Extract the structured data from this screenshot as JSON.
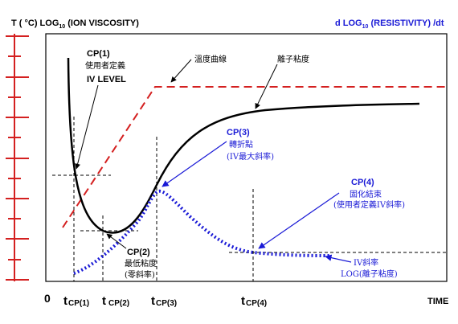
{
  "colors": {
    "temperature": "#d42020",
    "viscosity": "#000000",
    "resistivity": "#1a1ad6",
    "guides": "#000000"
  },
  "header": {
    "left_prefix": "T ( °C)  LOG",
    "left_sub": "10",
    "left_suffix": " (ION VISCOSITY)",
    "right_prefix": "d LOG",
    "right_sub": "10",
    "right_suffix": " (RESISTIVITY) /dt"
  },
  "axis": {
    "origin": "0",
    "time": "TIME",
    "t_labels": [
      {
        "t": "t",
        "sub": "CP(1)"
      },
      {
        "t": "t",
        "sub": "CP(2)"
      },
      {
        "t": "t",
        "sub": "CP(3)"
      },
      {
        "t": "t",
        "sub": "CP(4)"
      }
    ]
  },
  "curve_labels": {
    "temperature": "溫度曲線",
    "viscosity": "離子粘度"
  },
  "points": {
    "cp1": {
      "title": "CP(1)",
      "line1": "使用者定義",
      "line2": "IV LEVEL"
    },
    "cp2": {
      "title": "CP(2)",
      "line1": "最低粘度",
      "line2": "(零斜率)"
    },
    "cp3": {
      "title": "CP(3)",
      "line1": "轉折點",
      "line2": "(IV最大斜率)"
    },
    "cp4": {
      "title": "CP(4)",
      "line1": "固化結束",
      "line2": "(使用者定義IV斜率)"
    }
  },
  "slope_note": {
    "line1": "IV斜率",
    "line2": "LOG(離子粘度)"
  }
}
